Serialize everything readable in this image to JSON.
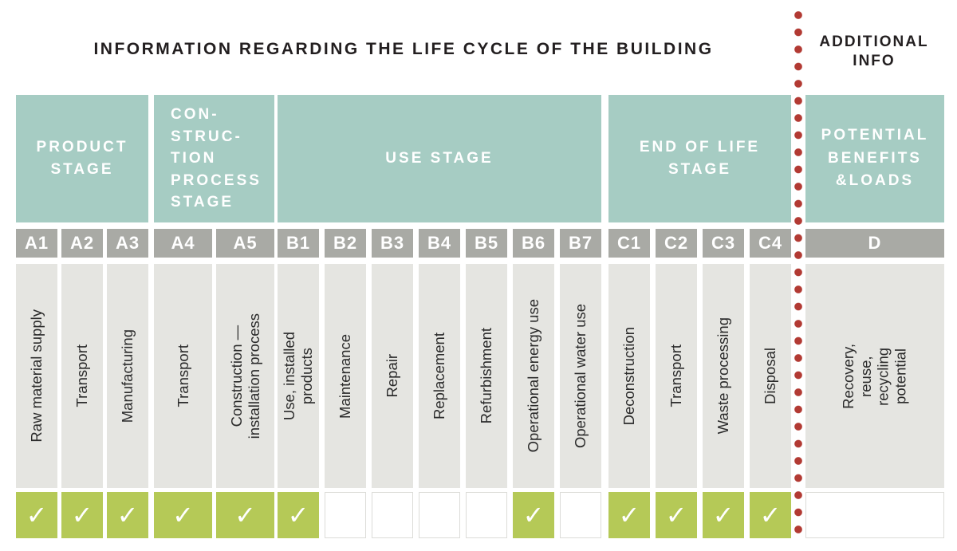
{
  "header": {
    "title": "INFORMATION REGARDING THE LIFE CYCLE OF THE BUILDING",
    "additional_info": "ADDITIONAL\nINFO"
  },
  "checkmark": "✓",
  "colors": {
    "teal_header": "#a6ccc3",
    "gray_code": "#a9aaa5",
    "label_background": "#e5e5e1",
    "check_green": "#b5c957",
    "dot_red": "#b23a33"
  },
  "groups": [
    {
      "header": "PRODUCT\nSTAGE",
      "columns": [
        {
          "code": "A1",
          "label": "Raw material supply",
          "checked": true
        },
        {
          "code": "A2",
          "label": "Transport",
          "checked": true
        },
        {
          "code": "A3",
          "label": "Manufacturing",
          "checked": true
        }
      ]
    },
    {
      "header": "CON-\nSTRUC-\nTION\nPROCESS\nSTAGE",
      "columns": [
        {
          "code": "A4",
          "label": "Transport",
          "checked": true
        },
        {
          "code": "A5",
          "label": "Construction —\ninstallation process",
          "checked": true
        }
      ]
    },
    {
      "header": "USE STAGE",
      "columns": [
        {
          "code": "B1",
          "label": "Use, installed\nproducts",
          "checked": true
        },
        {
          "code": "B2",
          "label": "Maintenance",
          "checked": false
        },
        {
          "code": "B3",
          "label": "Repair",
          "checked": false
        },
        {
          "code": "B4",
          "label": "Replacement",
          "checked": false
        },
        {
          "code": "B5",
          "label": "Refurbishment",
          "checked": false
        },
        {
          "code": "B6",
          "label": "Operational energy use",
          "checked": true
        },
        {
          "code": "B7",
          "label": "Operational water use",
          "checked": false
        }
      ]
    },
    {
      "header": "END OF LIFE\nSTAGE",
      "columns": [
        {
          "code": "C1",
          "label": "Deconstruction",
          "checked": true
        },
        {
          "code": "C2",
          "label": "Transport",
          "checked": true
        },
        {
          "code": "C3",
          "label": "Waste processing",
          "checked": true
        },
        {
          "code": "C4",
          "label": "Disposal",
          "checked": true
        }
      ]
    },
    {
      "header": "POTENTIAL\nBENEFITS\n&LOADS",
      "columns": [
        {
          "code": "D",
          "label": "Recovery,\nreuse,\nrecycling\npotential",
          "checked": false
        }
      ]
    }
  ]
}
